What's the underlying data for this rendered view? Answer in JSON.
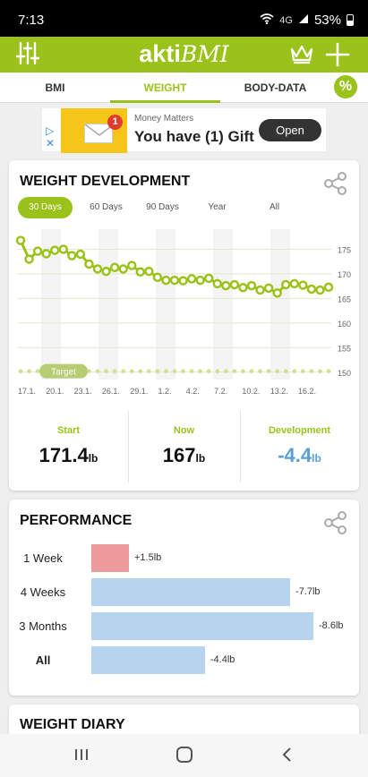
{
  "status": {
    "time": "7:13",
    "network": "4G",
    "battery": "53%"
  },
  "app": {
    "logo_bold": "akti",
    "logo_italic": "BMI",
    "icons": {
      "settings": "sliders-icon",
      "premium": "crown-icon",
      "add": "plus-icon"
    }
  },
  "tabs": [
    {
      "label": "BMI",
      "active": false
    },
    {
      "label": "WEIGHT",
      "active": true
    },
    {
      "label": "BODY-DATA",
      "active": false
    }
  ],
  "ad": {
    "subtitle": "Money Matters",
    "title": "You have (1) Gift",
    "button": "Open",
    "badge": "1"
  },
  "weight_card": {
    "title": "WEIGHT DEVELOPMENT",
    "ranges": [
      "30 Days",
      "60 Days",
      "90 Days",
      "Year",
      "All"
    ],
    "active_range": "30 Days",
    "target_label": "Target",
    "stats": {
      "start_label": "Start",
      "start_value": "171.4",
      "start_unit": "lb",
      "now_label": "Now",
      "now_value": "167",
      "now_unit": "lb",
      "dev_label": "Development",
      "dev_value": "-4.4",
      "dev_unit": "lb"
    }
  },
  "chart_data": {
    "type": "line",
    "x_ticks": [
      "17.1.",
      "20.1.",
      "23.1.",
      "26.1.",
      "29.1.",
      "1.2.",
      "4.2.",
      "7.2.",
      "10.2.",
      "13.2.",
      "16.2."
    ],
    "y_ticks": [
      175,
      170,
      165,
      160,
      155,
      150
    ],
    "ylim": [
      148.5,
      178
    ],
    "series": [
      {
        "name": "",
        "color": "#9bc21b",
        "values": [
          176.8,
          173.0,
          174.6,
          174.1,
          174.8,
          175.0,
          173.7,
          174.0,
          172.0,
          171.0,
          170.5,
          171.3,
          171.0,
          171.7,
          170.4,
          170.5,
          169.3,
          168.7,
          168.7,
          168.6,
          169.0,
          168.7,
          169.1,
          168.0,
          167.6,
          167.8,
          167.2,
          167.6,
          166.7,
          167.1,
          166.1,
          167.8,
          168.0,
          167.7,
          166.9,
          166.7,
          167.3
        ]
      },
      {
        "name": "Target",
        "values": [
          150.2
        ]
      }
    ],
    "target": 150.2,
    "grid": true
  },
  "performance": {
    "title": "PERFORMANCE",
    "rows": [
      {
        "label": "1 Week",
        "value": "+1.5lb",
        "amount": 1.5,
        "color": "#ee9a9c",
        "bold": false
      },
      {
        "label": "4 Weeks",
        "value": "-7.7lb",
        "amount": 7.7,
        "color": "#b6d4ee",
        "bold": false
      },
      {
        "label": "3 Months",
        "value": "-8.6lb",
        "amount": 8.6,
        "color": "#b6d4ee",
        "bold": false
      },
      {
        "label": "All",
        "value": "-4.4lb",
        "amount": 4.4,
        "color": "#b6d4ee",
        "bold": true
      }
    ]
  },
  "diary": {
    "title": "WEIGHT DIARY"
  },
  "colors": {
    "brand": "#9bc21b",
    "development": "#5b9fd6"
  }
}
